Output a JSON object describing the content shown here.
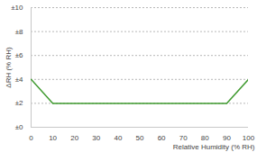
{
  "chart_data": {
    "type": "line",
    "x_label": "Relative Humidity (% RH)",
    "y_label": "ΔRH (% RH)",
    "x": [
      0,
      10,
      90,
      100
    ],
    "values": [
      4,
      2,
      2,
      4
    ],
    "color": "#3f9a2f",
    "xlim": [
      0,
      100
    ],
    "xticks": [
      0,
      10,
      20,
      30,
      40,
      50,
      60,
      70,
      80,
      90,
      100
    ],
    "ylim": [
      0,
      10
    ],
    "yticks": [
      {
        "value": 0,
        "label": "±0"
      },
      {
        "value": 2,
        "label": "±2"
      },
      {
        "value": 4,
        "label": "±4"
      },
      {
        "value": 6,
        "label": "±6"
      },
      {
        "value": 8,
        "label": "±8"
      },
      {
        "value": 10,
        "label": "±10"
      }
    ],
    "grid": true
  }
}
